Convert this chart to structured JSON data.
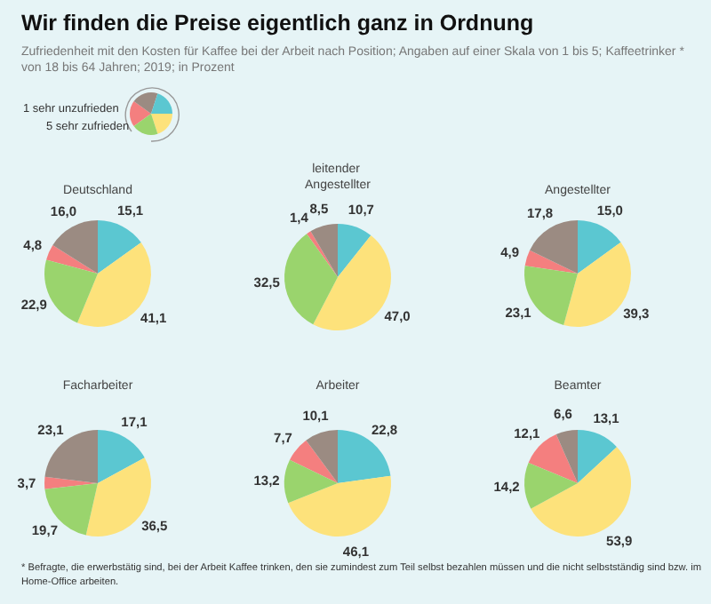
{
  "chart_data": [
    {
      "type": "pie",
      "title": "Deutschland",
      "annotations": [
        "Wir finden die Preise eigentlich ganz in Ordnung",
        "Zufriedenheit mit den Kosten für Kaffee bei der Arbeit nach Position; Angaben auf einer Skala von 1 bis 5; Kaffeetrinker * von 18 bis 64 Jahren; 2019; in Prozent",
        "* Befragte, die erwerbstätig sind, bei der Arbeit Kaffee trinken, den sie zumindest zum Teil selbst bezahlen müssen und die nicht selbstständig sind bzw. im Home-Office arbeiten."
      ],
      "legend": "top left",
      "categories": [
        "1 sehr unzufrieden",
        null,
        null,
        null,
        "5 sehr zufrieden"
      ],
      "colors": [
        "#f47f7f",
        "#9b8b82",
        "#5bc7d1",
        "#fde27b",
        "#9ad46d"
      ],
      "values": [
        4.8,
        16.0,
        15.1,
        41.1,
        22.9
      ],
      "value_labels": [
        "4,8",
        "16,0",
        "15,1",
        "41,1",
        "22,9"
      ]
    },
    {
      "type": "pie",
      "title": "leitender Angestellter",
      "categories": [
        null,
        null,
        null,
        null,
        null
      ],
      "colors": [
        "#f47f7f",
        "#9b8b82",
        "#5bc7d1",
        "#fde27b",
        "#9ad46d"
      ],
      "values": [
        1.4,
        8.5,
        10.7,
        47.0,
        32.5
      ],
      "value_labels": [
        "1,4",
        "8,5",
        "10,7",
        "47,0",
        "32,5"
      ]
    },
    {
      "type": "pie",
      "title": "Angestellter",
      "categories": [
        null,
        null,
        null,
        null,
        null
      ],
      "colors": [
        "#f47f7f",
        "#9b8b82",
        "#5bc7d1",
        "#fde27b",
        "#9ad46d"
      ],
      "values": [
        4.9,
        17.8,
        15.0,
        39.3,
        23.1
      ],
      "value_labels": [
        "4,9",
        "17,8",
        "15,0",
        "39,3",
        "23,1"
      ]
    },
    {
      "type": "pie",
      "title": "Facharbeiter",
      "categories": [
        null,
        null,
        null,
        null,
        null
      ],
      "colors": [
        "#f47f7f",
        "#9b8b82",
        "#5bc7d1",
        "#fde27b",
        "#9ad46d"
      ],
      "values": [
        3.7,
        23.1,
        17.1,
        36.5,
        19.7
      ],
      "value_labels": [
        "3,7",
        "23,1",
        "17,1",
        "36,5",
        "19,7"
      ]
    },
    {
      "type": "pie",
      "title": "Arbeiter",
      "categories": [
        null,
        null,
        null,
        null,
        null
      ],
      "colors": [
        "#f47f7f",
        "#9b8b82",
        "#5bc7d1",
        "#fde27b",
        "#9ad46d"
      ],
      "values": [
        7.7,
        10.1,
        22.8,
        46.1,
        13.2
      ],
      "value_labels": [
        "7,7",
        "10,1",
        "22,8",
        "46,1",
        "13,2"
      ]
    },
    {
      "type": "pie",
      "title": "Beamter",
      "categories": [
        null,
        null,
        null,
        null,
        null
      ],
      "colors": [
        "#f47f7f",
        "#9b8b82",
        "#5bc7d1",
        "#fde27b",
        "#9ad46d"
      ],
      "values": [
        12.1,
        6.6,
        13.1,
        53.9,
        14.2
      ],
      "value_labels": [
        "12,1",
        "6,6",
        "13,1",
        "53,9",
        "14,2"
      ]
    }
  ]
}
